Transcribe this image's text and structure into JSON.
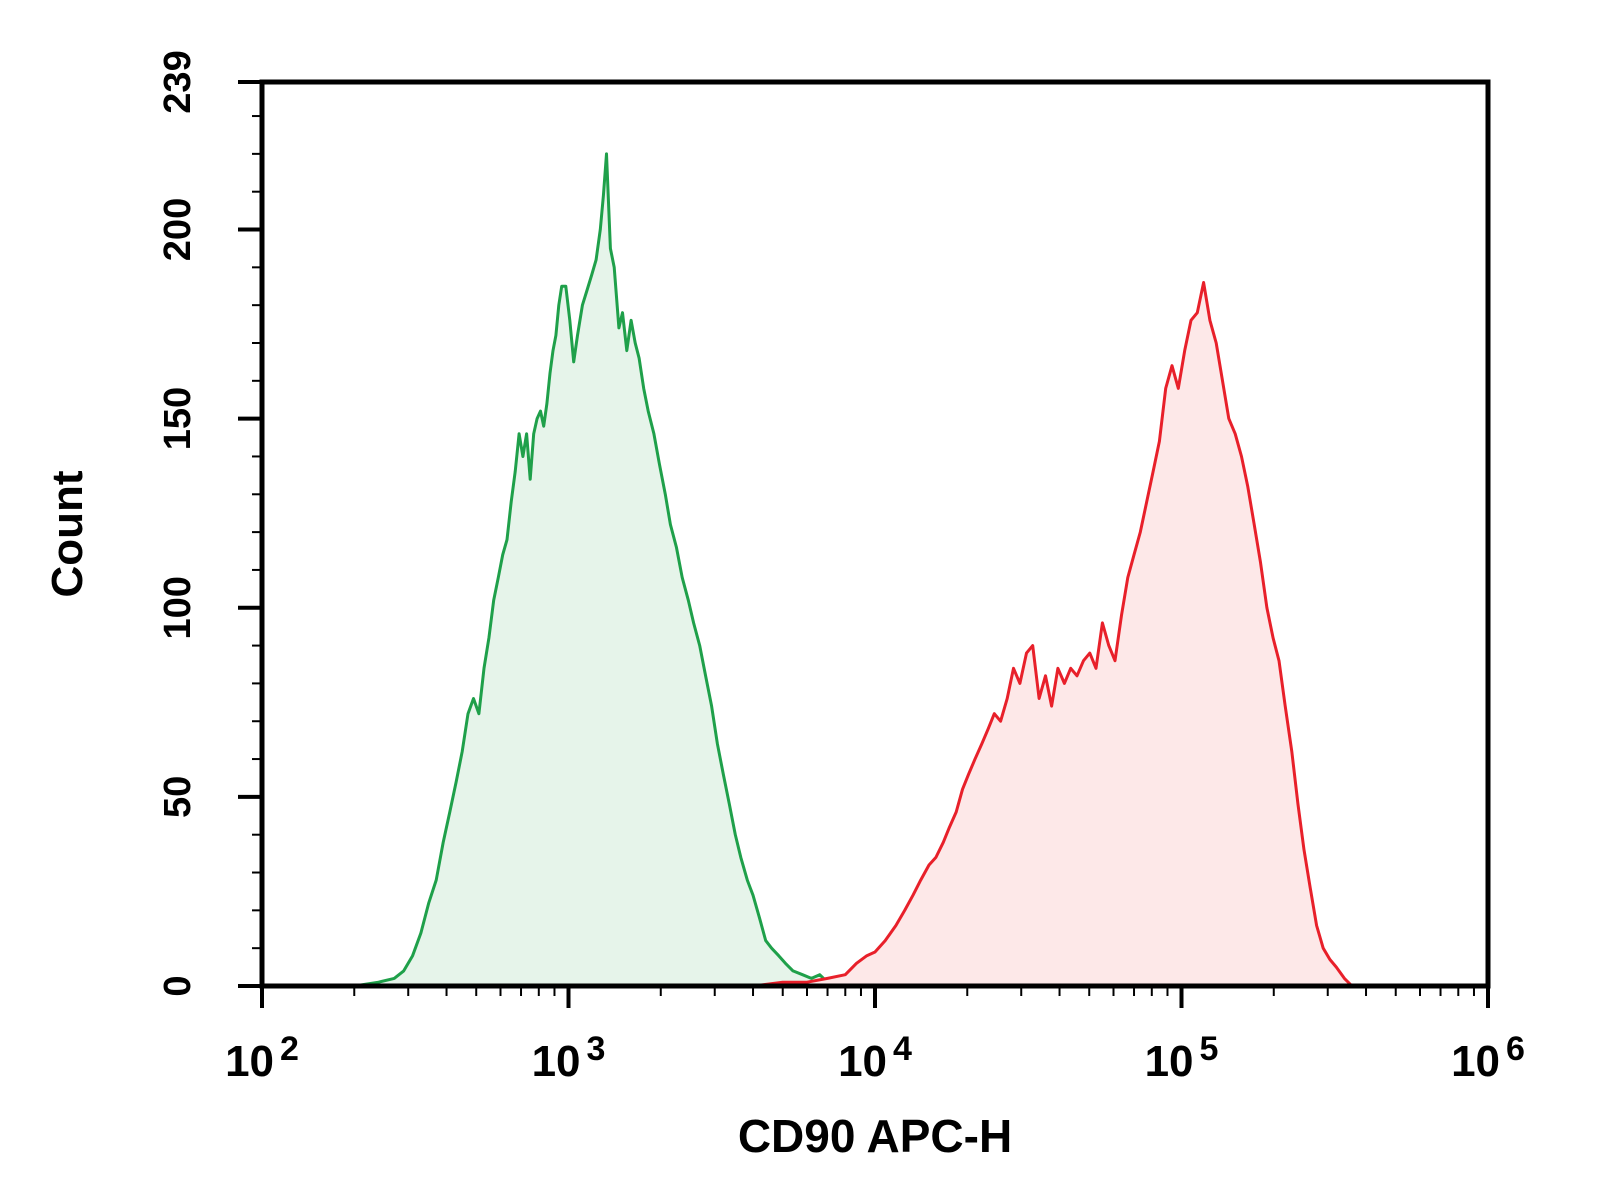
{
  "chart_data": {
    "type": "area",
    "title": "",
    "xlabel": "CD90 APC-H",
    "ylabel": "Count",
    "xscale": "log",
    "xlim": [
      100,
      1000000
    ],
    "ylim": [
      0,
      239
    ],
    "x_ticks": [
      {
        "value": 100,
        "base": "10",
        "exp": "2"
      },
      {
        "value": 1000,
        "base": "10",
        "exp": "3"
      },
      {
        "value": 10000,
        "base": "10",
        "exp": "4"
      },
      {
        "value": 100000,
        "base": "10",
        "exp": "5"
      },
      {
        "value": 1000000,
        "base": "10",
        "exp": "6"
      }
    ],
    "y_ticks": [
      "0",
      "50",
      "100",
      "150",
      "200",
      "239"
    ],
    "grid": false,
    "legend": "none",
    "series": [
      {
        "color": "#1fa04a",
        "fill": "#e6f4ea",
        "points": [
          [
            150,
            0
          ],
          [
            200,
            0
          ],
          [
            240,
            1
          ],
          [
            270,
            2
          ],
          [
            290,
            4
          ],
          [
            310,
            8
          ],
          [
            330,
            14
          ],
          [
            350,
            22
          ],
          [
            370,
            28
          ],
          [
            390,
            38
          ],
          [
            410,
            46
          ],
          [
            430,
            54
          ],
          [
            450,
            62
          ],
          [
            470,
            72
          ],
          [
            490,
            76
          ],
          [
            510,
            72
          ],
          [
            530,
            84
          ],
          [
            550,
            92
          ],
          [
            570,
            102
          ],
          [
            590,
            108
          ],
          [
            610,
            114
          ],
          [
            630,
            118
          ],
          [
            650,
            128
          ],
          [
            670,
            136
          ],
          [
            690,
            146
          ],
          [
            710,
            140
          ],
          [
            730,
            146
          ],
          [
            750,
            134
          ],
          [
            770,
            146
          ],
          [
            790,
            150
          ],
          [
            810,
            152
          ],
          [
            830,
            148
          ],
          [
            850,
            154
          ],
          [
            870,
            162
          ],
          [
            890,
            168
          ],
          [
            910,
            172
          ],
          [
            930,
            180
          ],
          [
            950,
            185
          ],
          [
            980,
            185
          ],
          [
            1010,
            176
          ],
          [
            1040,
            165
          ],
          [
            1070,
            172
          ],
          [
            1110,
            180
          ],
          [
            1150,
            184
          ],
          [
            1190,
            188
          ],
          [
            1230,
            192
          ],
          [
            1270,
            200
          ],
          [
            1300,
            209
          ],
          [
            1330,
            220
          ],
          [
            1370,
            195
          ],
          [
            1410,
            190
          ],
          [
            1460,
            174
          ],
          [
            1500,
            178
          ],
          [
            1550,
            168
          ],
          [
            1600,
            176
          ],
          [
            1650,
            170
          ],
          [
            1700,
            166
          ],
          [
            1760,
            158
          ],
          [
            1820,
            152
          ],
          [
            1900,
            146
          ],
          [
            1980,
            138
          ],
          [
            2070,
            130
          ],
          [
            2150,
            122
          ],
          [
            2250,
            116
          ],
          [
            2350,
            108
          ],
          [
            2460,
            102
          ],
          [
            2560,
            96
          ],
          [
            2680,
            90
          ],
          [
            2800,
            82
          ],
          [
            2930,
            74
          ],
          [
            3060,
            64
          ],
          [
            3200,
            56
          ],
          [
            3350,
            48
          ],
          [
            3500,
            40
          ],
          [
            3650,
            34
          ],
          [
            3830,
            28
          ],
          [
            4000,
            24
          ],
          [
            4200,
            18
          ],
          [
            4400,
            12
          ],
          [
            4600,
            10
          ],
          [
            4850,
            8
          ],
          [
            5100,
            6
          ],
          [
            5400,
            4
          ],
          [
            5800,
            3
          ],
          [
            6200,
            2
          ],
          [
            6600,
            3
          ],
          [
            7000,
            1
          ],
          [
            7600,
            0
          ],
          [
            8000,
            0
          ]
        ]
      },
      {
        "color": "#e8202a",
        "fill": "#fde8e8",
        "points": [
          [
            4000,
            0
          ],
          [
            5000,
            1
          ],
          [
            6000,
            1
          ],
          [
            7000,
            2
          ],
          [
            8000,
            3
          ],
          [
            8700,
            6
          ],
          [
            9400,
            8
          ],
          [
            10000,
            9
          ],
          [
            10800,
            12
          ],
          [
            11700,
            16
          ],
          [
            12500,
            20
          ],
          [
            13300,
            24
          ],
          [
            14100,
            28
          ],
          [
            15000,
            32
          ],
          [
            15800,
            34
          ],
          [
            16700,
            38
          ],
          [
            17500,
            42
          ],
          [
            18400,
            46
          ],
          [
            19300,
            52
          ],
          [
            20200,
            56
          ],
          [
            21200,
            60
          ],
          [
            22300,
            64
          ],
          [
            23400,
            68
          ],
          [
            24500,
            72
          ],
          [
            25700,
            70
          ],
          [
            27000,
            76
          ],
          [
            28300,
            84
          ],
          [
            29700,
            80
          ],
          [
            31200,
            88
          ],
          [
            32700,
            90
          ],
          [
            34300,
            76
          ],
          [
            36000,
            82
          ],
          [
            37700,
            74
          ],
          [
            39500,
            84
          ],
          [
            41500,
            80
          ],
          [
            43500,
            84
          ],
          [
            45600,
            82
          ],
          [
            47900,
            86
          ],
          [
            50200,
            88
          ],
          [
            52600,
            84
          ],
          [
            55200,
            96
          ],
          [
            57900,
            90
          ],
          [
            60700,
            86
          ],
          [
            63700,
            98
          ],
          [
            66800,
            108
          ],
          [
            70000,
            114
          ],
          [
            73400,
            120
          ],
          [
            77000,
            128
          ],
          [
            80800,
            136
          ],
          [
            84700,
            144
          ],
          [
            88800,
            158
          ],
          [
            93100,
            164
          ],
          [
            97600,
            158
          ],
          [
            102400,
            168
          ],
          [
            107400,
            176
          ],
          [
            112600,
            178
          ],
          [
            118100,
            186
          ],
          [
            123800,
            176
          ],
          [
            129800,
            170
          ],
          [
            136100,
            160
          ],
          [
            142700,
            150
          ],
          [
            149700,
            146
          ],
          [
            157000,
            140
          ],
          [
            164600,
            132
          ],
          [
            172600,
            122
          ],
          [
            181000,
            112
          ],
          [
            190000,
            100
          ],
          [
            199000,
            92
          ],
          [
            208000,
            86
          ],
          [
            218000,
            74
          ],
          [
            229000,
            62
          ],
          [
            240000,
            48
          ],
          [
            251000,
            36
          ],
          [
            263000,
            26
          ],
          [
            276000,
            16
          ],
          [
            290000,
            10
          ],
          [
            305000,
            7
          ],
          [
            320000,
            5
          ],
          [
            340000,
            2
          ],
          [
            360000,
            0
          ],
          [
            400000,
            0
          ]
        ]
      }
    ]
  }
}
